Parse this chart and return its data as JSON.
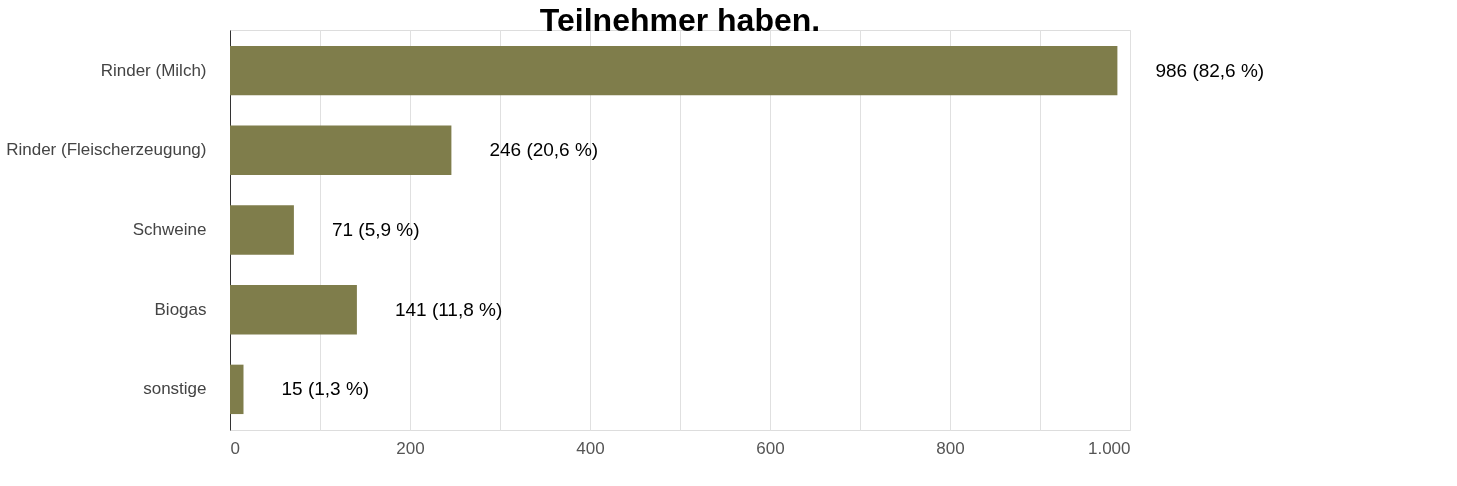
{
  "chart_data": {
    "type": "bar",
    "orientation": "horizontal",
    "title": "Teilnehmer haben.",
    "categories": [
      "Rinder (Milch)",
      "Rinder (Fleischerzeugung)",
      "Schweine",
      "Biogas",
      "sonstige"
    ],
    "values": [
      986,
      246,
      71,
      141,
      15
    ],
    "value_labels": [
      "986 (82,6 %)",
      "246 (20,6 %)",
      "71 (5,9 %)",
      "141 (11,8 %)",
      "15 (1,3 %)"
    ],
    "color": "#7f7d4b",
    "xlim": [
      0,
      1000
    ],
    "xticks": [
      0,
      {
        "value": 100,
        "label": null
      },
      200,
      {
        "value": 300,
        "label": null
      },
      400,
      {
        "value": 500,
        "label": null
      },
      600,
      {
        "value": 700,
        "label": null
      },
      800,
      {
        "value": 900,
        "label": null
      },
      {
        "value": 1000,
        "label": "1.000"
      }
    ],
    "grid": "x"
  }
}
